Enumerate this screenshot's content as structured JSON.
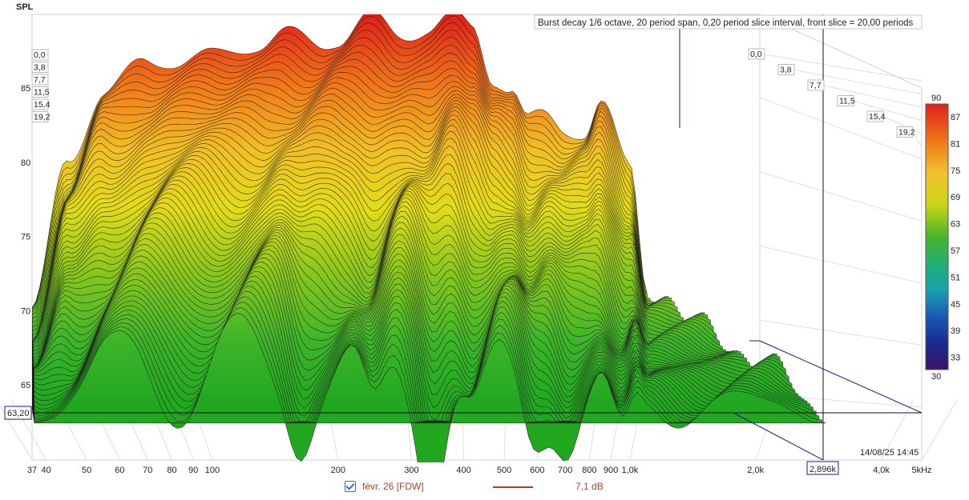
{
  "chart_data": {
    "type": "area",
    "title": "Burst decay 1/6 octave, 20 period span, 0,20 period slice interval,  front slice = 20,00 periods",
    "ylabel": "SPL",
    "ylim": [
      60,
      90
    ],
    "y_ticks": [
      "65",
      "70",
      "75",
      "80",
      "85"
    ],
    "x_scale": "log",
    "x_ticks": [
      "37",
      "40",
      "50",
      "60",
      "70",
      "80",
      "90",
      "100",
      "200",
      "300",
      "400",
      "500",
      "600",
      "700",
      "800",
      "900",
      "1,0k",
      "2,0k",
      "4,0k",
      "5kHz"
    ],
    "slice_labels_left": [
      "0,0",
      "3,8",
      "7,7",
      "11,5",
      "15,4",
      "19,2"
    ],
    "slice_labels_right": [
      "0,0",
      "3,8",
      "7,7",
      "11,5",
      "15,4",
      "19,2"
    ],
    "colorbar_labels": [
      "90",
      "87",
      "81",
      "75",
      "69",
      "63",
      "57",
      "51",
      "45",
      "39",
      "33",
      "30"
    ],
    "cursor_y_label": "63,20",
    "cursor_x_label": "2,896k",
    "timestamp": "14/08/25 14:45",
    "series": [
      {
        "name": "févr. 26 [FDW]",
        "value_label": "7,1 dB",
        "back_slice_x": [
          37,
          45,
          55,
          70,
          80,
          100,
          130,
          150,
          180,
          200,
          240,
          280,
          330,
          380,
          420,
          470,
          520,
          570,
          620,
          700,
          780,
          850,
          1000,
          1100
        ],
        "back_slice_y": [
          70,
          80,
          84.8,
          86.7,
          86.9,
          87.1,
          88.0,
          88.6,
          88.0,
          88.3,
          89.7,
          88.6,
          89.0,
          89.7,
          89.0,
          85.7,
          85.0,
          82.8,
          83.0,
          82.2,
          82.1,
          84.0,
          79.5,
          71.5
        ]
      }
    ]
  },
  "legend": {
    "checkbox_label": "févr. 26 [FDW]",
    "value": "7,1 dB"
  },
  "colors": {
    "cursor": "#1a1a8c",
    "legend_text": "#c0392b",
    "colormap": [
      "#e0201a",
      "#f07818",
      "#f2c12e",
      "#e8dc14",
      "#7ec21a",
      "#2fae2a",
      "#22b08a",
      "#1a8cb4",
      "#1a4aa0",
      "#3a1e8a"
    ]
  }
}
